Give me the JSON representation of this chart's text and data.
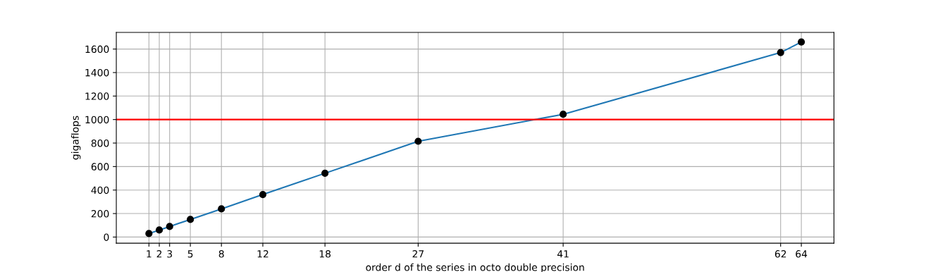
{
  "chart_data": {
    "type": "line",
    "xlabel": "order d of the series in octo double precision",
    "ylabel": "gigaflops",
    "x": [
      1,
      2,
      3,
      5,
      8,
      12,
      18,
      27,
      41,
      62,
      64
    ],
    "series": [
      {
        "color": "#1f77b4",
        "values": [
          30,
          60,
          90,
          150,
          240,
          362,
          543,
          815,
          1045,
          1570,
          1660
        ]
      },
      {
        "type": "scatter",
        "marker": "circle",
        "color": "#000000",
        "values": [
          30,
          60,
          90,
          150,
          240,
          362,
          543,
          815,
          1045,
          1570,
          1660
        ]
      }
    ],
    "xlim": [
      -2.15,
      67.15
    ],
    "ylim": [
      -52,
      1742
    ],
    "xticks": [
      1,
      2,
      3,
      5,
      8,
      12,
      18,
      27,
      41,
      62,
      64
    ],
    "yticks": [
      0,
      200,
      400,
      600,
      800,
      1000,
      1200,
      1400,
      1600
    ],
    "ref_lines": [
      {
        "axis": "y",
        "value": 1000,
        "color": "#ff0000"
      }
    ],
    "grid": true
  }
}
